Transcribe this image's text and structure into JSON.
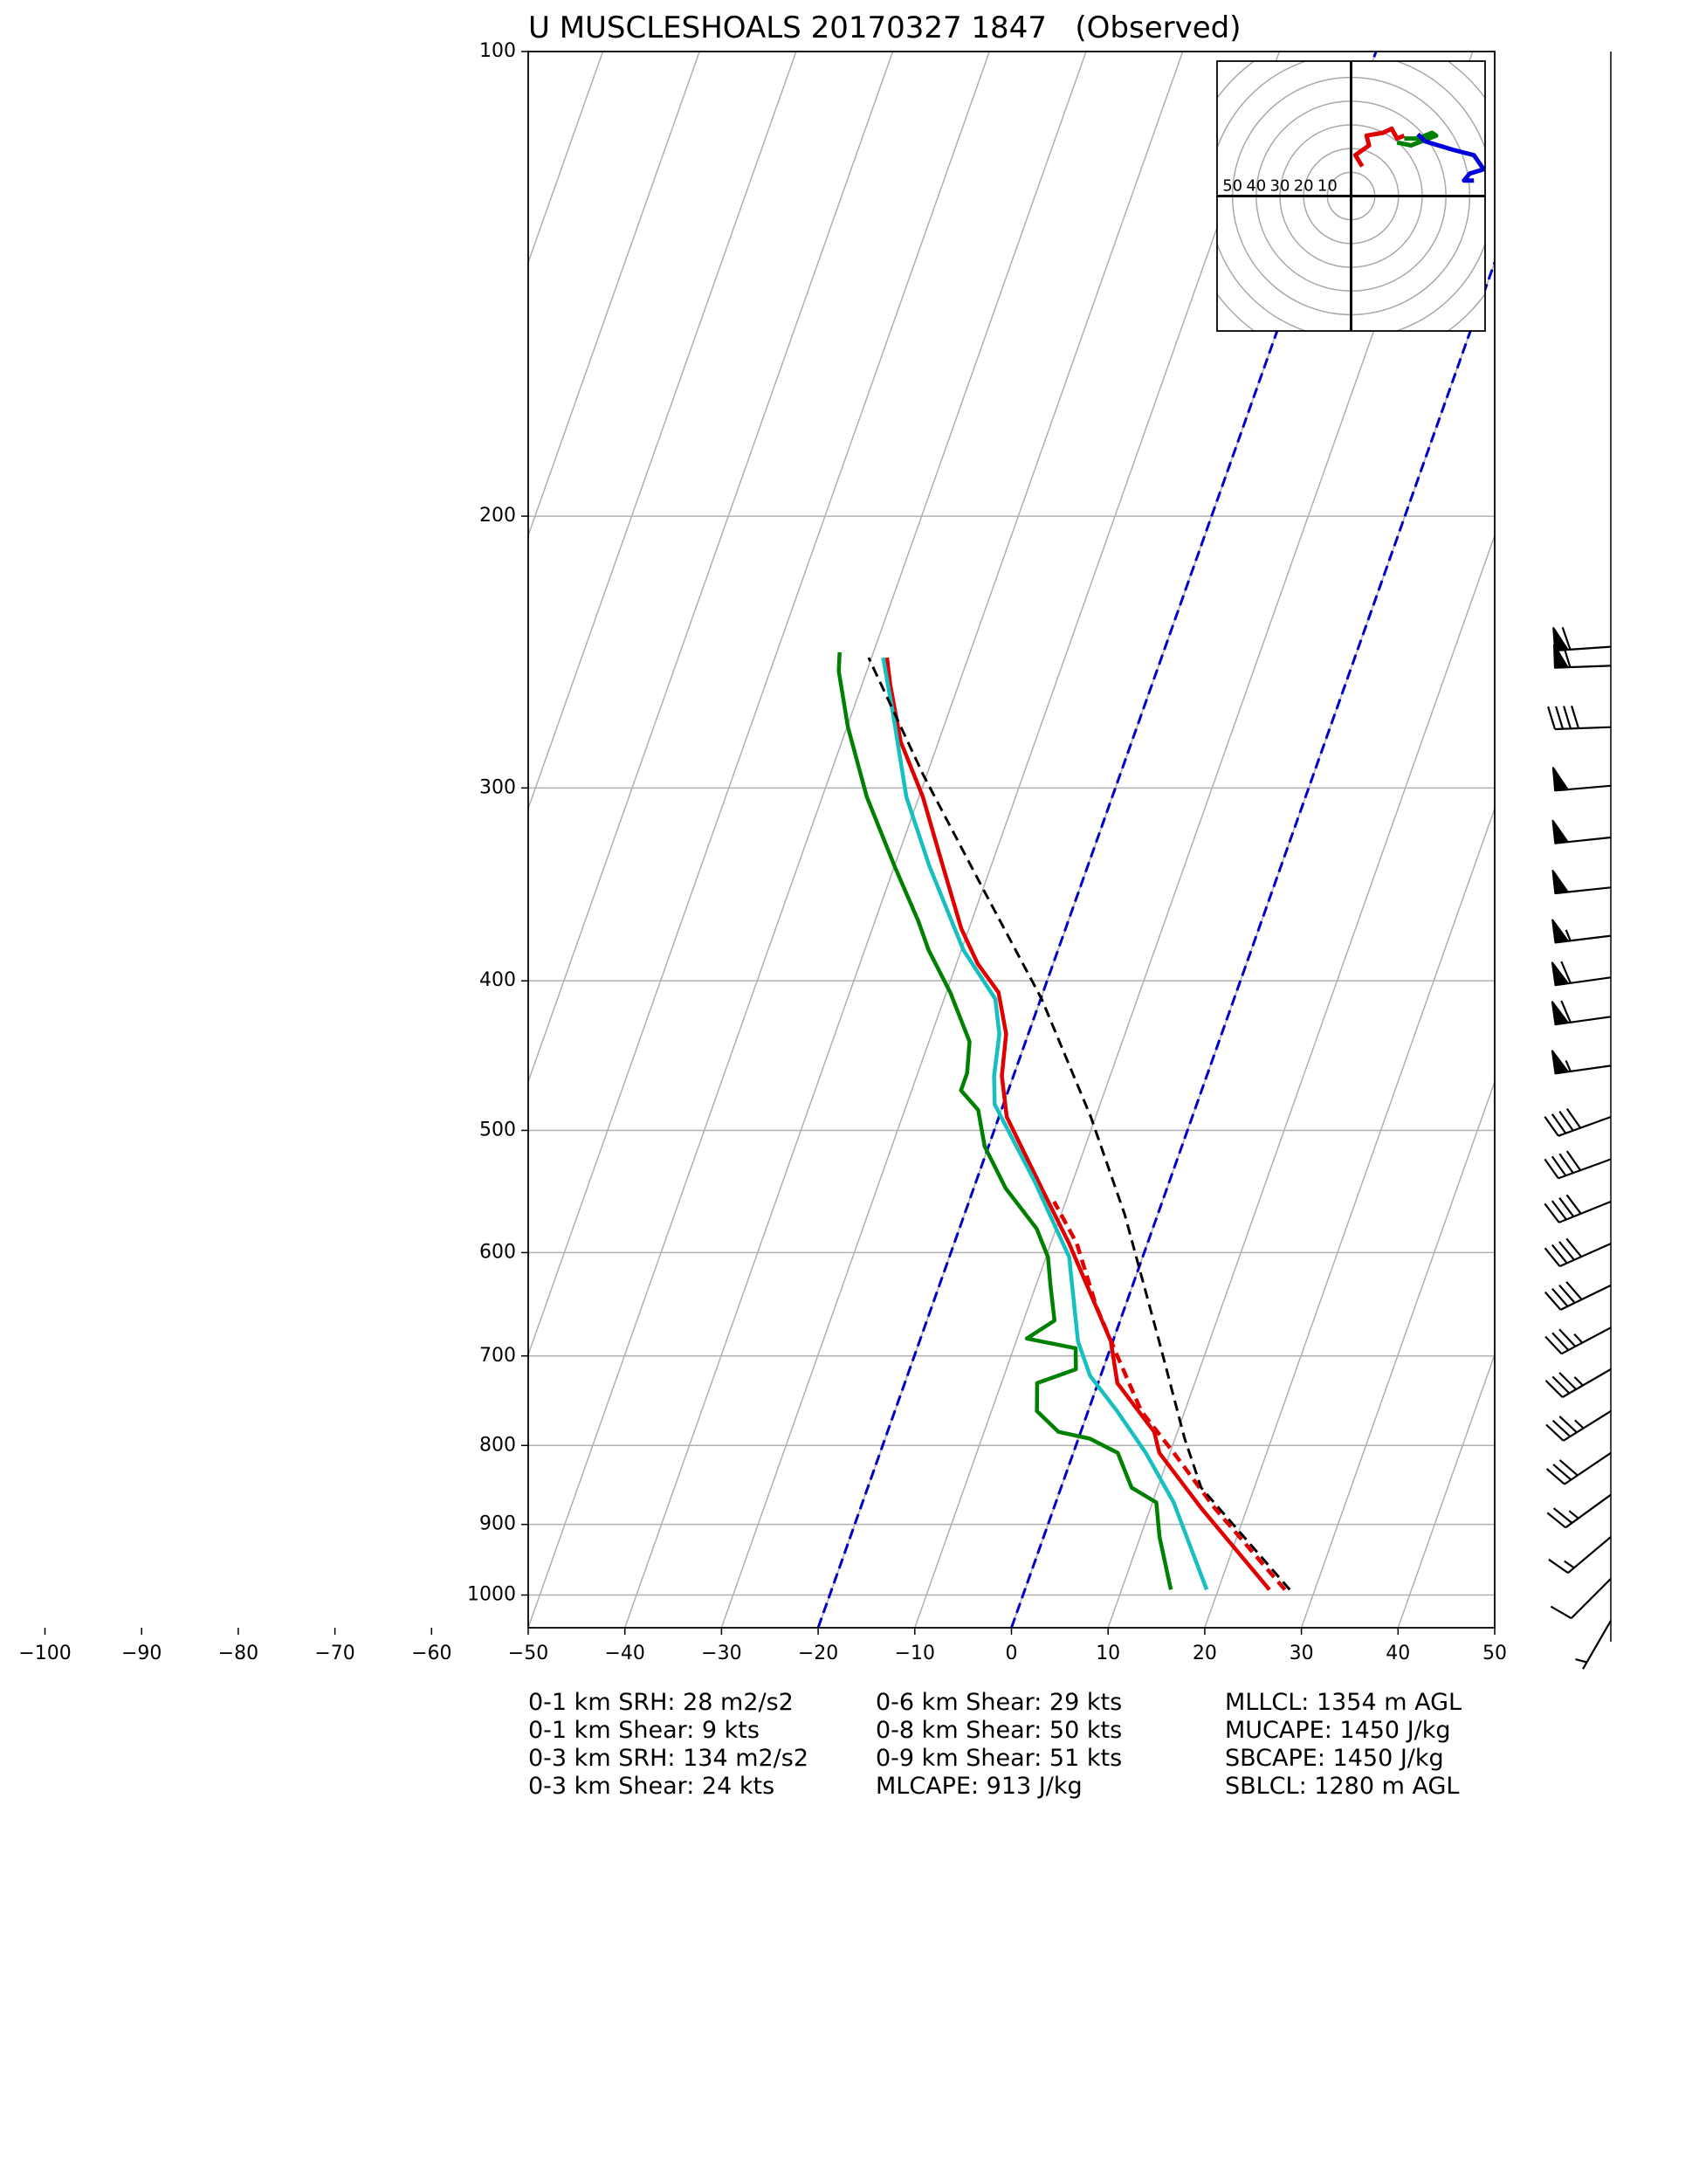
{
  "chart_data": {
    "type": "skewt",
    "title": "U MUSCLESHOALS 20170327 1847   (Observed)",
    "xlim": [
      -50,
      50
    ],
    "ylim": [
      1050,
      100
    ],
    "log_y": true,
    "grid": true,
    "xticks": [
      {
        "value": -100,
        "label": "−100"
      },
      {
        "value": -90,
        "label": "−90"
      },
      {
        "value": -80,
        "label": "−80"
      },
      {
        "value": -70,
        "label": "−70"
      },
      {
        "value": -60,
        "label": "−60"
      },
      {
        "value": -50,
        "label": "−50"
      },
      {
        "value": -40,
        "label": "−40"
      },
      {
        "value": -30,
        "label": "−30"
      },
      {
        "value": -20,
        "label": "−20"
      },
      {
        "value": -10,
        "label": "−10"
      },
      0,
      10,
      20,
      30,
      40,
      50
    ],
    "yticks": [
      100,
      200,
      300,
      400,
      500,
      600,
      700,
      800,
      900,
      1000
    ],
    "reference_isotherms": {
      "values": [
        -20,
        0
      ],
      "color": "#0000cc"
    },
    "series": [
      {
        "color": "#e00000",
        "dashed": false,
        "x": [
          25.3,
          15.3,
          8.9,
          7.6,
          2.0,
          -0.2,
          -8.1,
          -11.8,
          -19.2,
          -21.2,
          -22.3,
          -24.6,
          -27.8,
          -30.8,
          -35,
          -39.6,
          -43.9,
          -47.1,
          -48.4
        ],
        "values": [
          992,
          879,
          809,
          784,
          729,
          685,
          592,
          556,
          490,
          461,
          433,
          407,
          390,
          370,
          337,
          304,
          280,
          257,
          247
        ]
      },
      {
        "color": "#e00000",
        "dashed": true,
        "x": [
          26.9,
          16.7,
          10.4,
          5.5,
          1.0,
          -3.0,
          -7.3,
          -11.2
        ],
        "values": [
          992,
          879,
          809,
          760,
          700,
          650,
          592,
          556
        ]
      },
      {
        "color": "#17bfbf",
        "dashed": false,
        "x": [
          18.8,
          12.2,
          7.5,
          3.0,
          -1.1,
          -3.6,
          -7.6,
          -14.0,
          -20.9,
          -22,
          -23,
          -24.7,
          -29.8,
          -36.4,
          -41.3,
          -45.8,
          -48.8
        ],
        "values": [
          992,
          871,
          809,
          760,
          721,
          685,
          604,
          539,
          481,
          461,
          433,
          411,
          382,
          337,
          304,
          268,
          247
        ]
      },
      {
        "color": "#008000",
        "dashed": false,
        "x": [
          15.1,
          12.0,
          10.4,
          7.3,
          4.6,
          1.2,
          -2.3,
          -5.3,
          -6.3,
          -2.8,
          -3.6,
          -9.0,
          -6.8,
          -8.5,
          -9.8,
          -12.0,
          -16.7,
          -20.4,
          -22.4,
          -24.9,
          -24.9,
          -25.8,
          -29.6,
          -33.4,
          -35.5,
          -40,
          -45.4,
          -49.9,
          -52.9,
          -53.5
        ],
        "values": [
          992,
          917,
          871,
          852,
          809,
          792,
          784,
          760,
          729,
          714,
          692,
          682,
          664,
          630,
          604,
          579,
          545,
          512,
          485,
          471,
          459,
          438,
          407,
          382,
          366,
          337,
          304,
          274,
          252,
          245
        ]
      },
      {
        "color": "#000000",
        "dashed": true,
        "x": [
          27.4,
          14.5,
          11.0,
          4.8,
          -3.4,
          -10.5,
          -19.9,
          -29.6,
          -40.4,
          -50.3
        ],
        "values": [
          992,
          852,
          792,
          685,
          567,
          490,
          411,
          351,
          294,
          247
        ]
      }
    ],
    "barbs": {
      "pressure": [
        243,
        250,
        274,
        299,
        323,
        348,
        374,
        398,
        422,
        454,
        490,
        522,
        556,
        592,
        630,
        671,
        714,
        760,
        809,
        861,
        917,
        976,
        1039
      ],
      "speed": [
        60,
        60,
        40,
        50,
        50,
        50,
        55,
        60,
        60,
        55,
        40,
        40,
        40,
        40,
        40,
        35,
        35,
        35,
        30,
        25,
        15,
        10,
        5
      ],
      "direction": [
        266,
        268,
        268,
        265,
        264,
        264,
        263,
        262,
        262,
        262,
        250,
        250,
        248,
        246,
        244,
        242,
        240,
        238,
        236,
        234,
        230,
        225,
        210
      ]
    },
    "hodograph": {
      "xlim": [
        -56.5,
        56.5
      ],
      "ylim": [
        -56.5,
        56.5
      ],
      "ring_labels": [
        50,
        40,
        30,
        20,
        10
      ],
      "series": [
        {
          "color": "#e00000",
          "u": [
            4.7,
            1.8,
            7.6,
            6.5,
            13.5,
            17.1,
            19.4,
            22.4
          ],
          "v": [
            12.4,
            17.1,
            21.2,
            25.3,
            26.5,
            28.2,
            24.1,
            25.3
          ]
        },
        {
          "color": "#008000",
          "u": [
            22.4,
            28.2,
            34.1,
            35.9,
            25.3,
            19.4
          ],
          "v": [
            24.1,
            24.1,
            26.5,
            25.3,
            21.2,
            22.4
          ]
        },
        {
          "color": "#0000dd",
          "u": [
            28.2,
            31.2,
            42.9,
            51.8,
            55.9,
            50,
            47.6,
            51.8
          ],
          "v": [
            25.9,
            22.9,
            19.4,
            17.1,
            11.2,
            9.4,
            6.5,
            6.5
          ]
        }
      ]
    },
    "annotations": [
      "0-1 km SRH: 28 m2/s2",
      "0-1 km Shear: 9 kts",
      "0-3 km SRH: 134 m2/s2",
      "0-3 km Shear: 24 kts",
      "0-6 km Shear: 29 kts",
      "0-8 km Shear: 50 kts",
      "0-9 km Shear: 51 kts",
      "MLCAPE: 913 J/kg",
      "MLLCL: 1354 m AGL",
      "MUCAPE: 1450 J/kg",
      "SBCAPE: 1450 J/kg",
      "SBLCL: 1280 m AGL"
    ]
  }
}
